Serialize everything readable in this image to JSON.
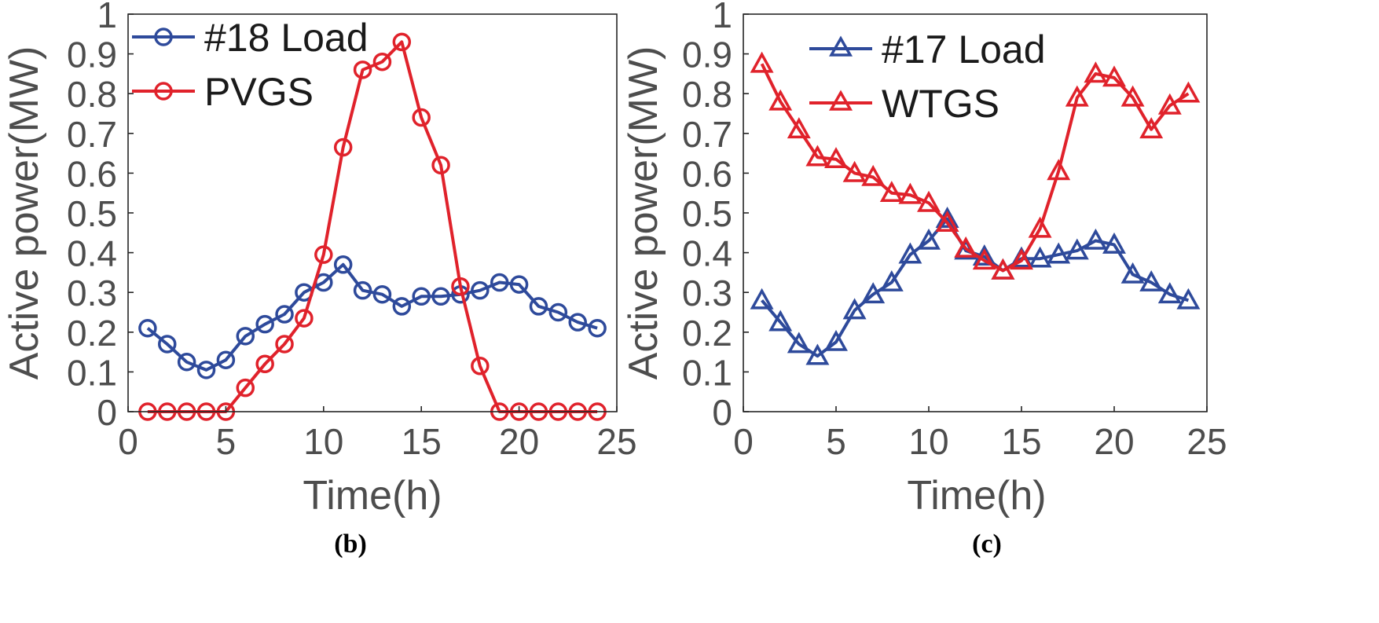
{
  "chart_data": [
    {
      "type": "line",
      "panel": "b",
      "caption_letter": "b",
      "xlabel": "Time(h)",
      "ylabel": "Active power(MW)",
      "xlim": [
        0,
        25
      ],
      "ylim": [
        0,
        1
      ],
      "xticks": [
        "0",
        "5",
        "10",
        "15",
        "20",
        "25"
      ],
      "yticks": [
        "0",
        "0.1",
        "0.2",
        "0.3",
        "0.4",
        "0.5",
        "0.6",
        "0.7",
        "0.8",
        "0.9",
        "1"
      ],
      "legend_position": "top-left",
      "x": [
        1,
        2,
        3,
        4,
        5,
        6,
        7,
        8,
        9,
        10,
        11,
        12,
        13,
        14,
        15,
        16,
        17,
        18,
        19,
        20,
        21,
        22,
        23,
        24
      ],
      "series": [
        {
          "name": "#18 Load",
          "color": "#2e4a9b",
          "marker": "circle",
          "values": [
            0.21,
            0.17,
            0.125,
            0.105,
            0.13,
            0.19,
            0.22,
            0.245,
            0.3,
            0.325,
            0.37,
            0.305,
            0.295,
            0.265,
            0.29,
            0.29,
            0.295,
            0.305,
            0.325,
            0.32,
            0.265,
            0.25,
            0.225,
            0.21
          ]
        },
        {
          "name": "PVGS",
          "color": "#e0222b",
          "marker": "circle",
          "values": [
            0,
            0,
            0,
            0,
            0,
            0.06,
            0.12,
            0.17,
            0.235,
            0.395,
            0.665,
            0.86,
            0.88,
            0.93,
            0.74,
            0.62,
            0.315,
            0.115,
            0,
            0,
            0,
            0,
            0,
            0
          ]
        }
      ]
    },
    {
      "type": "line",
      "panel": "c",
      "caption_letter": "c",
      "xlabel": "Time(h)",
      "ylabel": "Active power(MW)",
      "xlim": [
        0,
        25
      ],
      "ylim": [
        0,
        1
      ],
      "xticks": [
        "0",
        "5",
        "10",
        "15",
        "20",
        "25"
      ],
      "yticks": [
        "0",
        "0.1",
        "0.2",
        "0.3",
        "0.4",
        "0.5",
        "0.6",
        "0.7",
        "0.8",
        "0.9",
        "1"
      ],
      "legend_position": "top-center",
      "x": [
        1,
        2,
        3,
        4,
        5,
        6,
        7,
        8,
        9,
        10,
        11,
        12,
        13,
        14,
        15,
        16,
        17,
        18,
        19,
        20,
        21,
        22,
        23,
        24
      ],
      "series": [
        {
          "name": "#17 Load",
          "color": "#2e4a9b",
          "marker": "triangle",
          "values": [
            0.28,
            0.225,
            0.17,
            0.14,
            0.175,
            0.255,
            0.295,
            0.325,
            0.395,
            0.43,
            0.485,
            0.405,
            0.39,
            0.355,
            0.385,
            0.385,
            0.395,
            0.405,
            0.43,
            0.42,
            0.345,
            0.325,
            0.295,
            0.28
          ]
        },
        {
          "name": "WTGS",
          "color": "#e0222b",
          "marker": "triangle",
          "values": [
            0.875,
            0.78,
            0.71,
            0.64,
            0.635,
            0.6,
            0.59,
            0.55,
            0.545,
            0.525,
            0.475,
            0.41,
            0.38,
            0.355,
            0.38,
            0.46,
            0.605,
            0.79,
            0.85,
            0.84,
            0.79,
            0.71,
            0.77,
            0.8
          ]
        }
      ]
    }
  ]
}
